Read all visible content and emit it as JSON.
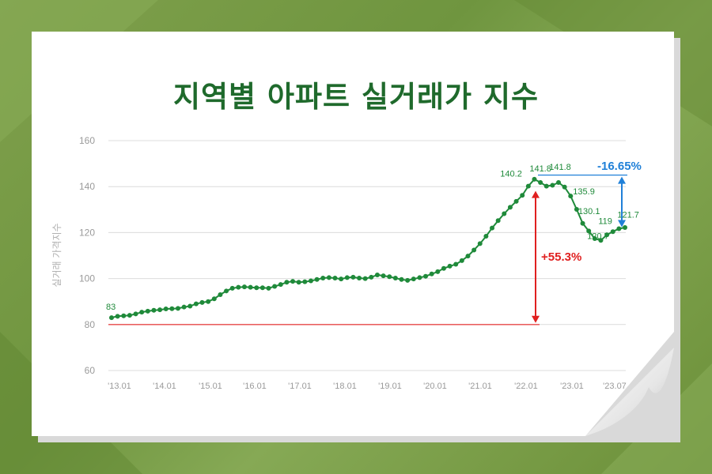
{
  "title": "지역별 아파트 실거래가 지수",
  "colors": {
    "line": "#1f8a3a",
    "title": "#1f6a2c",
    "baseline": "#e84a4a",
    "up_arrow": "#e02020",
    "down_arrow": "#2080d8",
    "grid": "#dcdcdc",
    "axis_text": "#9a9a9a"
  },
  "chart_data": {
    "type": "line",
    "title": "지역별 아파트 실거래가 지수",
    "ylabel": "실거래 가격지수",
    "ylim": [
      60,
      160
    ],
    "yticks": [
      60,
      80,
      100,
      120,
      140,
      160
    ],
    "xticks": [
      "'13.01",
      "'14.01",
      "'15.01",
      "'16.01",
      "'17.01",
      "'18.01",
      "'19.01",
      "'20.01",
      "'21.01",
      "'22.01",
      "'23.01",
      "'23.07"
    ],
    "grid": true,
    "series": [
      {
        "values": [
          83,
          83.6,
          83.8,
          84,
          84.6,
          85.4,
          85.8,
          86.2,
          86.4,
          86.8,
          86.9,
          87,
          87.6,
          88,
          89,
          89.6,
          90,
          91.2,
          93,
          94.6,
          95.8,
          96.2,
          96.4,
          96.2,
          96,
          96,
          95.8,
          96.6,
          97.4,
          98.4,
          98.8,
          98.4,
          98.6,
          99,
          99.6,
          100.2,
          100.4,
          100.2,
          99.8,
          100.4,
          100.6,
          100.2,
          100,
          100.6,
          101.6,
          101.2,
          100.8,
          100.2,
          99.6,
          99.2,
          99.8,
          100.4,
          101,
          102,
          103,
          104.4,
          105.4,
          106.2,
          107.8,
          109.8,
          112.4,
          115.2,
          118.4,
          122,
          125.2,
          128.2,
          131,
          133.6,
          136.2,
          140.2,
          143.2,
          141.8,
          140.2,
          140.6,
          141.8,
          139.8,
          135.9,
          130.1,
          124,
          120.7,
          117.4,
          116.6,
          119,
          120.4,
          121.7,
          122.2
        ]
      }
    ],
    "data_labels": [
      {
        "index": 0,
        "text": "83"
      },
      {
        "index": 69,
        "text": "140.2"
      },
      {
        "index": 71,
        "text": "141.8"
      },
      {
        "index": 74,
        "text": "141.8"
      },
      {
        "index": 76,
        "text": "135.9"
      },
      {
        "index": 77,
        "text": "130.1"
      },
      {
        "index": 79,
        "text": "120.7"
      },
      {
        "index": 82,
        "text": "119"
      },
      {
        "index": 84,
        "text": "121.7"
      }
    ],
    "baseline": 80,
    "annotations": [
      {
        "text": "+55.3%",
        "from": 80,
        "to": 140.2,
        "color": "#e02020"
      },
      {
        "text": "-16.65%",
        "from": 145,
        "to": 121,
        "color": "#2080d8"
      }
    ]
  }
}
